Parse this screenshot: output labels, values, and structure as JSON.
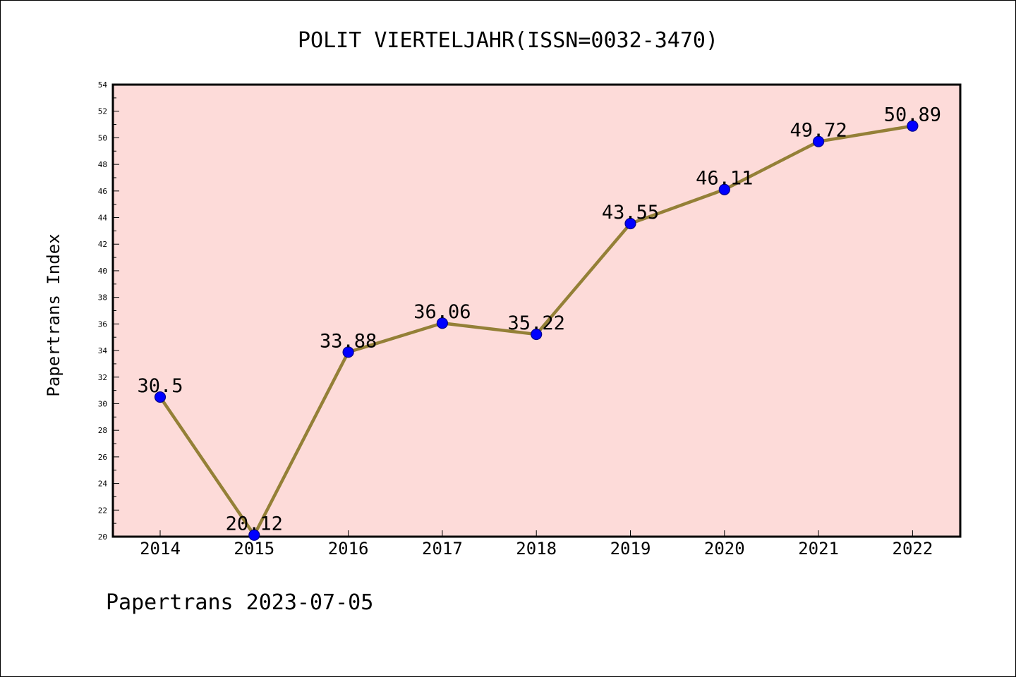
{
  "chart_data": {
    "type": "line",
    "title": "POLIT VIERTELJAHR(ISSN=0032-3470)",
    "xlabel": "",
    "ylabel": "Papertrans Index",
    "footer": "Papertrans 2023-07-05",
    "categories": [
      "2014",
      "2015",
      "2016",
      "2017",
      "2018",
      "2019",
      "2020",
      "2021",
      "2022"
    ],
    "values": [
      30.5,
      20.12,
      33.88,
      36.06,
      35.22,
      43.55,
      46.11,
      49.72,
      50.89
    ],
    "data_labels": [
      "30.5",
      "20.12",
      "33.88",
      "36.06",
      "35.22",
      "43.55",
      "46.11",
      "49.72",
      "50.89"
    ],
    "ylim": [
      20,
      54
    ],
    "yticks": [
      "20",
      "22",
      "24",
      "26",
      "28",
      "30",
      "32",
      "34",
      "36",
      "38",
      "40",
      "42",
      "44",
      "46",
      "48",
      "50",
      "52",
      "54"
    ],
    "grid": false,
    "legend": "none",
    "colors": {
      "plot_background": "#fddbd9",
      "line": "#948037",
      "marker_fill": "#0000ff",
      "marker_edge": "#00008b"
    }
  }
}
